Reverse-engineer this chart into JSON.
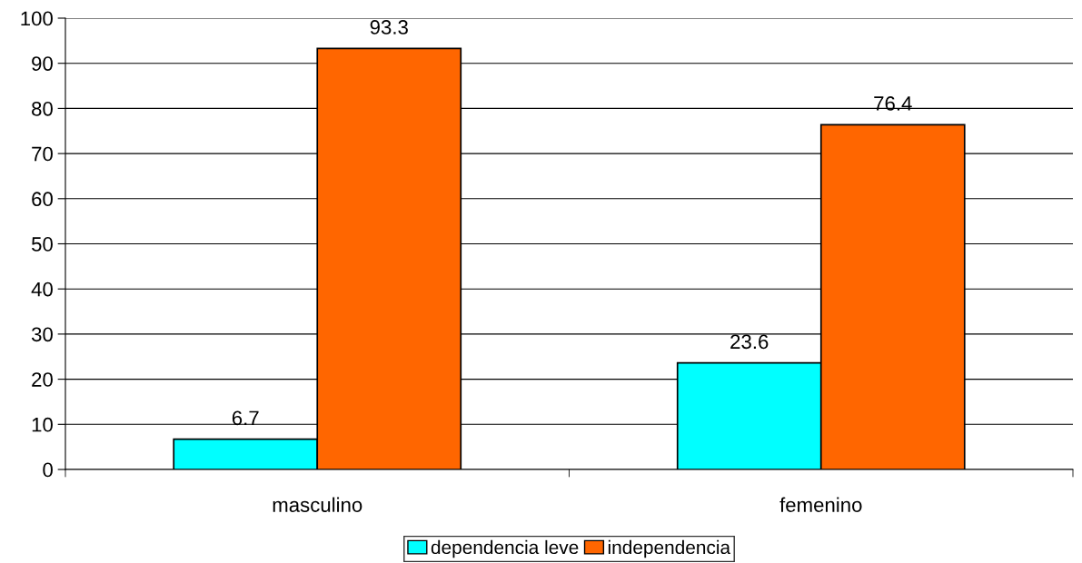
{
  "chart_data": {
    "type": "bar",
    "categories": [
      "masculino",
      "femenino"
    ],
    "series": [
      {
        "name": "dependencia leve",
        "color": "#00ffff",
        "values": [
          6.7,
          23.6
        ]
      },
      {
        "name": "independencia",
        "color": "#ff6600",
        "values": [
          93.3,
          76.4
        ]
      }
    ],
    "ylim": [
      0,
      100
    ],
    "yticks": [
      0,
      10,
      20,
      30,
      40,
      50,
      60,
      70,
      80,
      90,
      100
    ],
    "grid": "y",
    "legend": "bottom",
    "data_labels": true
  }
}
